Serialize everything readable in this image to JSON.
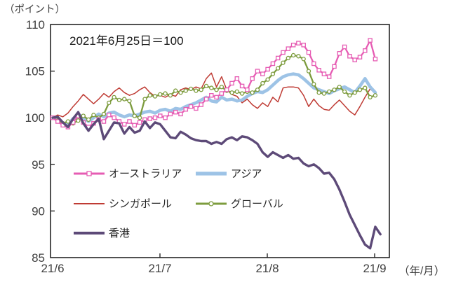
{
  "header": {
    "y_axis_unit": "（ポイント)",
    "x_axis_unit": "（年/月）",
    "annotation": "2021年6月25日＝100"
  },
  "chart_data": {
    "type": "line",
    "title": "",
    "annotation": "2021年6月25日＝100",
    "y_unit_label": "（ポイント）",
    "x_unit_label": "（年/月）",
    "ylim": [
      85,
      110
    ],
    "y_ticks": [
      85,
      90,
      95,
      100,
      105,
      110
    ],
    "x_tick_labels": [
      "21/6",
      "21/7",
      "21/8",
      "21/9"
    ],
    "grid": false,
    "legend_position": "inside-lower-left",
    "series": [
      {
        "name": "オーストラリア",
        "color": "#e65cb3",
        "marker": "square",
        "width": 2.3,
        "values": [
          100.0,
          99.6,
          99.2,
          99.0,
          99.5,
          100.2,
          99.5,
          99.0,
          99.4,
          99.8,
          99.6,
          100.3,
          100.0,
          99.6,
          99.3,
          99.6,
          99.2,
          99.5,
          99.8,
          99.9,
          100.0,
          100.2,
          100.0,
          100.4,
          100.6,
          100.4,
          100.9,
          101.2,
          101.0,
          101.4,
          102.0,
          102.4,
          102.2,
          102.6,
          103.0,
          103.7,
          104.2,
          103.4,
          103.0,
          104.2,
          105.0,
          104.7,
          105.2,
          105.8,
          106.4,
          107.0,
          107.4,
          107.8,
          108.0,
          107.8,
          107.0,
          105.8,
          105.1,
          104.7,
          104.4,
          105.5,
          106.9,
          107.6,
          106.6,
          106.2,
          106.5,
          107.2,
          108.3,
          106.3
        ]
      },
      {
        "name": "アジア",
        "color": "#9dc3e6",
        "marker": "none",
        "width": 4.6,
        "values": [
          100.0,
          99.8,
          99.4,
          99.3,
          99.9,
          100.4,
          100.0,
          99.6,
          100.0,
          100.4,
          100.1,
          100.5,
          100.6,
          100.3,
          100.1,
          100.3,
          100.2,
          100.4,
          100.6,
          100.7,
          100.5,
          100.8,
          100.9,
          100.7,
          101.0,
          100.9,
          101.2,
          101.4,
          101.6,
          101.9,
          102.2,
          101.8,
          101.7,
          102.2,
          101.9,
          102.0,
          101.8,
          101.9,
          102.3,
          102.6,
          102.8,
          102.7,
          103.0,
          103.5,
          104.0,
          104.4,
          104.6,
          104.7,
          104.6,
          104.2,
          103.7,
          103.2,
          103.0,
          102.8,
          102.6,
          102.9,
          103.1,
          103.3,
          103.0,
          102.7,
          103.4,
          104.2,
          103.3,
          102.7
        ]
      },
      {
        "name": "シンガポール",
        "color": "#bf3b34",
        "marker": "none",
        "width": 1.5,
        "values": [
          100.0,
          100.3,
          100.1,
          100.5,
          101.2,
          101.8,
          102.5,
          102.0,
          101.5,
          102.0,
          102.6,
          102.2,
          102.8,
          103.2,
          102.7,
          102.4,
          102.6,
          103.0,
          103.3,
          102.7,
          102.3,
          102.4,
          102.2,
          102.5,
          102.3,
          103.0,
          103.2,
          103.0,
          103.3,
          103.1,
          104.2,
          104.8,
          103.3,
          104.4,
          103.0,
          102.5,
          102.3,
          101.6,
          102.0,
          101.4,
          101.0,
          101.6,
          101.2,
          102.2,
          101.7,
          103.2,
          103.3,
          103.3,
          103.2,
          102.4,
          101.2,
          102.0,
          101.3,
          100.9,
          100.8,
          101.4,
          101.9,
          101.3,
          100.7,
          100.3,
          101.2,
          102.2,
          103.1,
          102.6
        ]
      },
      {
        "name": "グローバル",
        "color": "#7d9c3e",
        "marker": "circle",
        "width": 2.3,
        "values": [
          100.0,
          99.7,
          99.4,
          99.6,
          99.4,
          99.7,
          100.2,
          99.8,
          100.3,
          100.0,
          100.4,
          101.6,
          102.2,
          101.9,
          102.0,
          101.8,
          100.2,
          100.0,
          102.0,
          102.4,
          102.3,
          102.5,
          102.6,
          102.4,
          102.9,
          102.7,
          102.9,
          103.1,
          102.9,
          103.0,
          103.4,
          103.2,
          103.0,
          103.3,
          102.9,
          102.7,
          102.8,
          102.6,
          102.8,
          102.7,
          103.0,
          103.7,
          104.1,
          104.7,
          105.3,
          105.9,
          106.4,
          106.7,
          106.6,
          106.3,
          105.0,
          103.6,
          102.7,
          102.6,
          102.8,
          103.0,
          103.3,
          102.8,
          102.4,
          102.7,
          103.0,
          103.2,
          102.2,
          102.4
        ]
      },
      {
        "name": "香港",
        "color": "#5d4a78",
        "marker": "none",
        "width": 3.4,
        "values": [
          100.0,
          100.1,
          99.5,
          99.0,
          99.9,
          100.6,
          99.4,
          98.6,
          99.3,
          99.9,
          97.7,
          98.6,
          99.5,
          99.4,
          98.3,
          99.0,
          98.4,
          98.6,
          99.6,
          98.9,
          99.5,
          99.3,
          98.6,
          97.9,
          97.8,
          98.5,
          98.2,
          97.8,
          97.6,
          97.5,
          97.5,
          97.2,
          97.4,
          97.2,
          97.7,
          97.9,
          97.6,
          98.0,
          97.9,
          97.6,
          97.2,
          96.3,
          95.8,
          96.3,
          96.0,
          95.7,
          96.0,
          95.6,
          95.7,
          95.1,
          94.8,
          95.0,
          94.6,
          94.0,
          94.1,
          93.4,
          92.3,
          91.0,
          89.6,
          88.5,
          87.4,
          86.4,
          86.0,
          88.3,
          87.5
        ]
      }
    ]
  },
  "colors": {
    "axis": "#262626",
    "tick_text": "#404040"
  }
}
